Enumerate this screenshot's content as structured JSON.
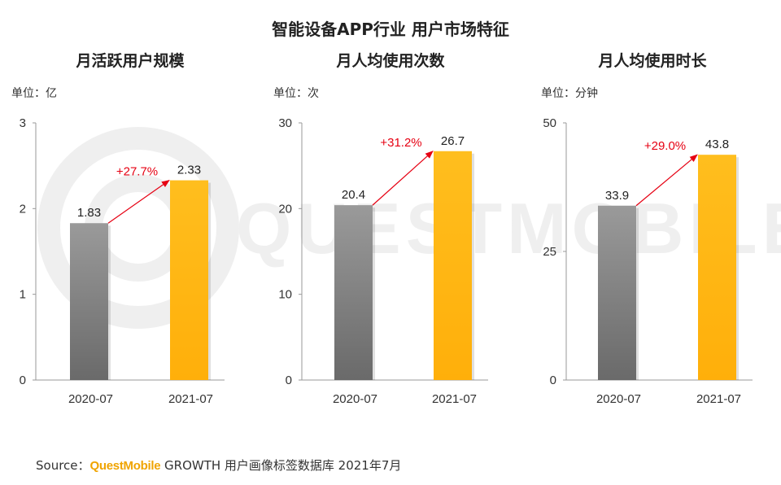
{
  "page": {
    "title": "智能设备APP行业 用户市场特征"
  },
  "watermark": {
    "text": "QUESTMOBILE"
  },
  "colors": {
    "bar_2020": "#7d7d7d",
    "bar_2021": "#ffb612",
    "growth": "#e60012",
    "axis": "#999999"
  },
  "chart_data": [
    {
      "type": "bar",
      "title": "月活跃用户规模",
      "unit": "单位：亿",
      "categories": [
        "2020-07",
        "2021-07"
      ],
      "values": [
        1.83,
        2.33
      ],
      "value_labels": [
        "1.83",
        "2.33"
      ],
      "growth_label": "+27.7%",
      "yticks": [
        0,
        1,
        2,
        3
      ],
      "ylim": [
        0,
        3
      ]
    },
    {
      "type": "bar",
      "title": "月人均使用次数",
      "unit": "单位：次",
      "categories": [
        "2020-07",
        "2021-07"
      ],
      "values": [
        20.4,
        26.7
      ],
      "value_labels": [
        "20.4",
        "26.7"
      ],
      "growth_label": "+31.2%",
      "yticks": [
        0,
        10,
        20,
        30
      ],
      "ylim": [
        0,
        30
      ]
    },
    {
      "type": "bar",
      "title": "月人均使用时长",
      "unit": "单位：分钟",
      "categories": [
        "2020-07",
        "2021-07"
      ],
      "values": [
        33.9,
        43.8
      ],
      "value_labels": [
        "33.9",
        "43.8"
      ],
      "growth_label": "+29.0%",
      "yticks": [
        0,
        25,
        50
      ],
      "ylim": [
        0,
        50
      ]
    }
  ],
  "footer": {
    "prefix": "Source：",
    "brand": "QuestMobile",
    "suffix": " GROWTH 用户画像标签数据库 2021年7月"
  }
}
